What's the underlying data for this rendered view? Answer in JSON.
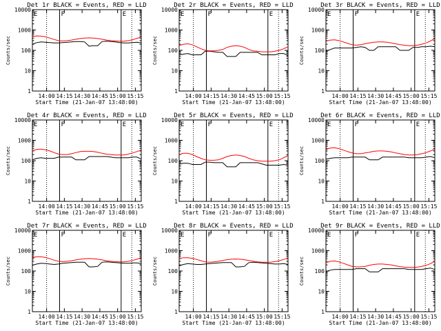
{
  "common": {
    "xlabel": "Start Time (21-Jan-07 13:48:00)",
    "ylabel": "Counts/sec",
    "x_tick_labels": [
      "14:00",
      "14:15",
      "14:30",
      "14:45",
      "15:00",
      "15:15"
    ],
    "y_tick_labels": [
      "1",
      "10",
      "100",
      "1000",
      "10000"
    ]
  },
  "chart_data": [
    {
      "type": "line",
      "title": "Det 1r BLACK = Events, RED = LLD",
      "ylim": [
        1,
        10000
      ],
      "yscale": "log",
      "marker_labels": [
        "E",
        "F",
        "E"
      ],
      "series": [
        {
          "name": "BLACK = Events",
          "color": "#000000",
          "values": [
            200,
            240,
            260,
            250,
            240,
            230,
            230,
            240,
            250,
            260,
            270,
            270,
            260,
            160,
            170,
            170,
            270,
            280,
            270,
            260,
            240,
            230,
            230,
            240,
            250,
            230
          ]
        },
        {
          "name": "RED = LLD",
          "color": "#ff0000",
          "values": [
            480,
            510,
            500,
            460,
            400,
            340,
            300,
            290,
            300,
            320,
            350,
            380,
            400,
            410,
            400,
            380,
            350,
            320,
            300,
            290,
            280,
            280,
            300,
            330,
            390,
            450
          ]
        }
      ]
    },
    {
      "type": "line",
      "title": "Det 2r BLACK = Events, RED = LLD",
      "ylim": [
        1,
        10000
      ],
      "yscale": "log",
      "marker_labels": [
        "E",
        "F",
        "E"
      ],
      "series": [
        {
          "name": "BLACK = Events",
          "color": "#000000",
          "values": [
            60,
            65,
            70,
            60,
            60,
            60,
            90,
            90,
            85,
            80,
            80,
            50,
            50,
            50,
            80,
            80,
            80,
            80,
            80,
            60,
            60,
            60,
            60,
            70,
            70,
            55
          ]
        },
        {
          "name": "RED = LLD",
          "color": "#ff0000",
          "values": [
            170,
            200,
            210,
            190,
            150,
            120,
            100,
            95,
            95,
            100,
            110,
            140,
            160,
            170,
            160,
            140,
            110,
            95,
            90,
            85,
            85,
            85,
            90,
            100,
            120,
            150
          ]
        }
      ]
    },
    {
      "type": "line",
      "title": "Det 3r BLACK = Events, RED = LLD",
      "ylim": [
        1,
        10000
      ],
      "yscale": "log",
      "marker_labels": [
        "E",
        "F",
        "E"
      ],
      "series": [
        {
          "name": "BLACK = Events",
          "color": "#000000",
          "values": [
            90,
            110,
            130,
            130,
            130,
            130,
            130,
            140,
            150,
            140,
            100,
            100,
            150,
            150,
            150,
            150,
            150,
            100,
            100,
            100,
            140,
            140,
            150,
            150,
            160,
            150
          ]
        },
        {
          "name": "RED = LLD",
          "color": "#ff0000",
          "values": [
            280,
            320,
            330,
            300,
            260,
            220,
            190,
            180,
            190,
            210,
            230,
            250,
            260,
            260,
            250,
            230,
            210,
            190,
            180,
            170,
            170,
            180,
            200,
            230,
            290,
            380
          ]
        }
      ]
    },
    {
      "type": "line",
      "title": "Det 4r BLACK = Events, RED = LLD",
      "ylim": [
        1,
        10000
      ],
      "yscale": "log",
      "marker_labels": [
        "E",
        "F",
        "E"
      ],
      "series": [
        {
          "name": "BLACK = Events",
          "color": "#000000",
          "values": [
            110,
            130,
            140,
            130,
            130,
            130,
            150,
            150,
            150,
            150,
            110,
            110,
            110,
            160,
            160,
            160,
            160,
            160,
            150,
            140,
            140,
            140,
            140,
            150,
            150,
            120
          ]
        },
        {
          "name": "RED = LLD",
          "color": "#ff0000",
          "values": [
            300,
            360,
            370,
            340,
            300,
            250,
            210,
            200,
            200,
            220,
            250,
            280,
            290,
            290,
            280,
            260,
            230,
            210,
            200,
            190,
            190,
            190,
            210,
            240,
            280,
            330
          ]
        }
      ]
    },
    {
      "type": "line",
      "title": "Det 5r BLACK = Events, RED = LLD",
      "ylim": [
        1,
        10000
      ],
      "yscale": "log",
      "marker_labels": [
        "E",
        "F",
        "E"
      ],
      "series": [
        {
          "name": "BLACK = Events",
          "color": "#000000",
          "values": [
            70,
            75,
            75,
            65,
            65,
            65,
            85,
            85,
            80,
            80,
            80,
            50,
            50,
            50,
            80,
            80,
            80,
            80,
            80,
            70,
            60,
            60,
            60,
            60,
            65,
            60
          ]
        },
        {
          "name": "RED = LLD",
          "color": "#ff0000",
          "values": [
            200,
            230,
            230,
            200,
            160,
            130,
            110,
            105,
            105,
            110,
            130,
            160,
            180,
            190,
            180,
            160,
            130,
            110,
            100,
            95,
            95,
            95,
            100,
            110,
            140,
            180
          ]
        }
      ]
    },
    {
      "type": "line",
      "title": "Det 6r BLACK = Events, RED = LLD",
      "ylim": [
        1,
        10000
      ],
      "yscale": "log",
      "marker_labels": [
        "E",
        "F",
        "E"
      ],
      "series": [
        {
          "name": "BLACK = Events",
          "color": "#000000",
          "values": [
            120,
            130,
            140,
            140,
            140,
            140,
            150,
            150,
            150,
            150,
            110,
            110,
            110,
            150,
            150,
            150,
            150,
            150,
            150,
            140,
            140,
            140,
            140,
            150,
            160,
            140
          ]
        },
        {
          "name": "RED = LLD",
          "color": "#ff0000",
          "values": [
            350,
            420,
            430,
            390,
            330,
            280,
            240,
            220,
            220,
            240,
            260,
            290,
            300,
            300,
            290,
            270,
            240,
            220,
            200,
            190,
            190,
            200,
            220,
            250,
            300,
            370
          ]
        }
      ]
    },
    {
      "type": "line",
      "title": "Det 7r BLACK = Events, RED = LLD",
      "ylim": [
        1,
        10000
      ],
      "yscale": "log",
      "marker_labels": [
        "E",
        "F",
        "E"
      ],
      "series": [
        {
          "name": "BLACK = Events",
          "color": "#000000",
          "values": [
            190,
            220,
            240,
            230,
            220,
            210,
            220,
            240,
            250,
            260,
            270,
            270,
            270,
            160,
            160,
            170,
            270,
            280,
            270,
            260,
            250,
            240,
            240,
            250,
            250,
            230
          ]
        },
        {
          "name": "RED = LLD",
          "color": "#ff0000",
          "values": [
            450,
            500,
            500,
            460,
            400,
            340,
            300,
            290,
            300,
            320,
            350,
            380,
            400,
            410,
            400,
            380,
            350,
            320,
            300,
            290,
            280,
            280,
            300,
            330,
            380,
            450
          ]
        }
      ]
    },
    {
      "type": "line",
      "title": "Det 8r BLACK = Events, RED = LLD",
      "ylim": [
        1,
        10000
      ],
      "yscale": "log",
      "marker_labels": [
        "E",
        "F",
        "E"
      ],
      "series": [
        {
          "name": "BLACK = Events",
          "color": "#000000",
          "values": [
            180,
            210,
            230,
            220,
            210,
            210,
            220,
            230,
            240,
            250,
            260,
            260,
            260,
            160,
            160,
            170,
            260,
            270,
            260,
            250,
            240,
            230,
            220,
            220,
            230,
            210
          ]
        },
        {
          "name": "RED = LLD",
          "color": "#ff0000",
          "values": [
            400,
            450,
            450,
            420,
            370,
            320,
            280,
            270,
            280,
            300,
            330,
            360,
            380,
            390,
            380,
            360,
            330,
            300,
            280,
            270,
            270,
            270,
            290,
            320,
            370,
            430
          ]
        }
      ]
    },
    {
      "type": "line",
      "title": "Det 9r BLACK = Events, RED = LLD",
      "ylim": [
        1,
        10000
      ],
      "yscale": "log",
      "marker_labels": [
        "E",
        "F",
        "E"
      ],
      "series": [
        {
          "name": "BLACK = Events",
          "color": "#000000",
          "values": [
            95,
            110,
            120,
            120,
            120,
            120,
            120,
            130,
            130,
            130,
            90,
            90,
            90,
            130,
            130,
            130,
            130,
            130,
            130,
            120,
            120,
            120,
            120,
            130,
            140,
            120
          ]
        },
        {
          "name": "RED = LLD",
          "color": "#ff0000",
          "values": [
            250,
            300,
            310,
            280,
            240,
            200,
            170,
            160,
            160,
            170,
            190,
            210,
            220,
            220,
            210,
            200,
            180,
            165,
            155,
            150,
            150,
            155,
            170,
            190,
            230,
            300
          ]
        }
      ]
    }
  ]
}
